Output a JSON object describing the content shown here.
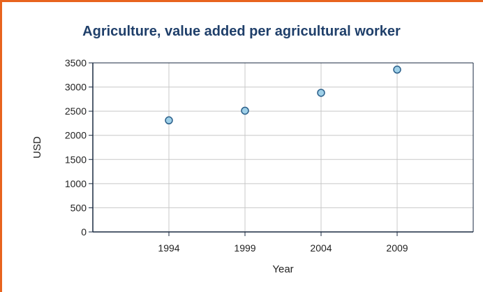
{
  "chart_data": {
    "type": "scatter",
    "title": "Agriculture, value added per agricultural worker",
    "xlabel": "Year",
    "ylabel": "USD",
    "x": [
      1994,
      1999,
      2004,
      2009
    ],
    "series": [
      {
        "values": [
          2310,
          2510,
          2880,
          3360
        ]
      }
    ],
    "xlim": [
      1989,
      2014
    ],
    "xticks": [
      "1994",
      "1999",
      "2004",
      "2009"
    ],
    "ylim": [
      0,
      3500
    ],
    "yticks": [
      "0",
      "500",
      "1000",
      "1500",
      "2000",
      "2500",
      "3000",
      "3500"
    ],
    "grid": true,
    "legend": "none",
    "colors": {
      "marker_fill": "#9fd0e8",
      "marker_stroke": "#2a5f8a",
      "grid": "#c8c8c8",
      "axis": "#1a2a40",
      "frame": "#e8641e",
      "title": "#1f3f6a"
    }
  }
}
